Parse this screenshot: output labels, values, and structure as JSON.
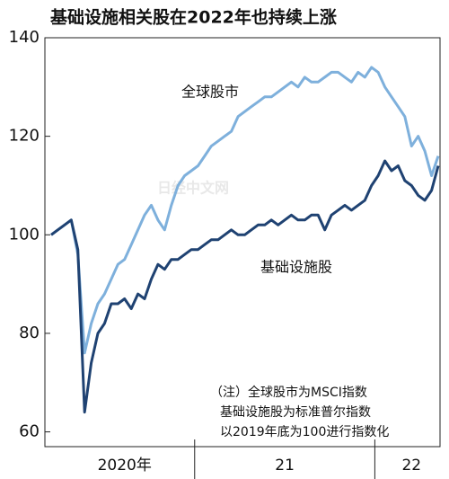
{
  "chart_data": {
    "type": "line",
    "title": "基础设施相关股在2022年也持续上涨",
    "categories": [
      null,
      null,
      null,
      null,
      null,
      null,
      null,
      null,
      null,
      null,
      null,
      "2020年",
      null,
      null,
      null,
      null,
      null,
      null,
      null,
      null,
      null,
      null,
      null,
      null,
      null,
      null,
      null,
      null,
      null,
      null,
      null,
      null,
      null,
      null,
      null,
      "21",
      null,
      null,
      null,
      null,
      null,
      null,
      null,
      null,
      null,
      null,
      null,
      null,
      null,
      null,
      null,
      null,
      null,
      null,
      "22",
      null,
      null,
      null,
      null
    ],
    "series": [
      {
        "name": "全球股市",
        "color": "#7eb0dc",
        "values": [
          100,
          101,
          102,
          103,
          96,
          76,
          82,
          86,
          88,
          91,
          94,
          95,
          98,
          101,
          104,
          106,
          103,
          101,
          106,
          110,
          112,
          113,
          114,
          116,
          118,
          119,
          120,
          121,
          124,
          125,
          126,
          127,
          128,
          128,
          129,
          130,
          131,
          130,
          132,
          131,
          131,
          132,
          133,
          133,
          132,
          131,
          133,
          132,
          134,
          133,
          130,
          128,
          126,
          124,
          118,
          120,
          117,
          112,
          116
        ]
      },
      {
        "name": "基础设施股",
        "color": "#1f4272",
        "values": [
          100,
          101,
          102,
          103,
          97,
          64,
          74,
          80,
          82,
          86,
          86,
          87,
          85,
          88,
          87,
          91,
          94,
          93,
          95,
          95,
          96,
          97,
          97,
          98,
          99,
          99,
          100,
          101,
          100,
          100,
          101,
          102,
          102,
          103,
          102,
          103,
          104,
          103,
          103,
          104,
          104,
          101,
          104,
          105,
          106,
          105,
          106,
          107,
          110,
          112,
          115,
          113,
          114,
          111,
          110,
          108,
          107,
          109,
          114
        ]
      }
    ],
    "ylim": [
      57,
      140
    ],
    "yticks": [
      60,
      80,
      100,
      120,
      140
    ],
    "grid": false,
    "annotations": [
      "（注）全球股市为MSCI指数",
      "基础设施股为标准普尔指数",
      "以2019年底为100进行指数化"
    ],
    "watermark": "日经中文网"
  }
}
